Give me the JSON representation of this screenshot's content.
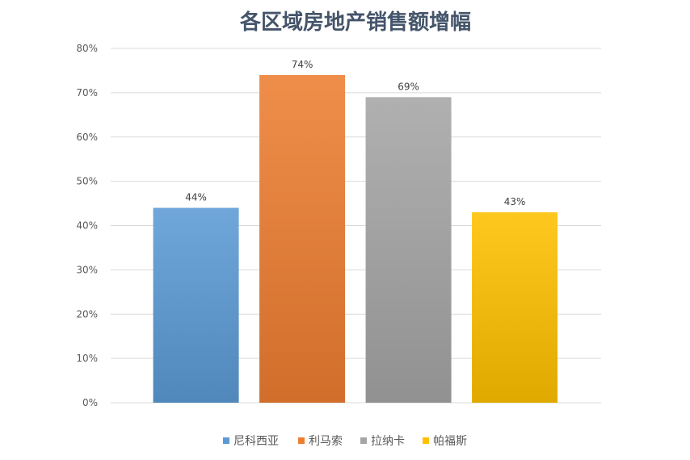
{
  "chart_data": {
    "type": "bar",
    "title": "各区域房地产销售额增幅",
    "categories": [
      "尼科西亚",
      "利马索",
      "拉纳卡",
      "帕福斯"
    ],
    "values": [
      44,
      74,
      69,
      43
    ],
    "value_labels": [
      "44%",
      "74%",
      "69%",
      "43%"
    ],
    "colors": [
      "#5b9bd5",
      "#ed7d31",
      "#a5a5a5",
      "#ffc000"
    ],
    "ylim": [
      0,
      80
    ],
    "yticks": [
      0,
      10,
      20,
      30,
      40,
      50,
      60,
      70,
      80
    ],
    "ytick_labels": [
      "0%",
      "10%",
      "20%",
      "30%",
      "40%",
      "50%",
      "60%",
      "70%",
      "80%"
    ],
    "grid": true,
    "legend_position": "bottom",
    "xlabel": "",
    "ylabel": ""
  }
}
